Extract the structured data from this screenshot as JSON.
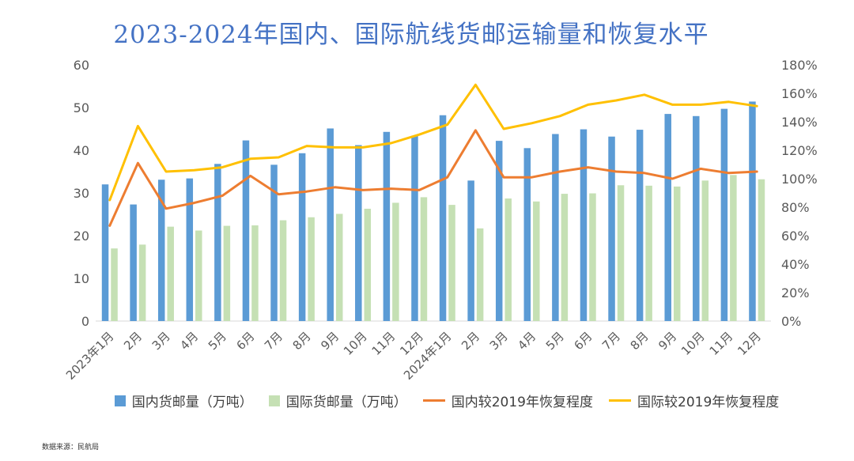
{
  "chart_data": {
    "type": "bar",
    "title": "2023-2024年国内、国际航线货邮运输量和恢复水平",
    "categories": [
      "2023年1月",
      "2月",
      "3月",
      "4月",
      "5月",
      "6月",
      "7月",
      "8月",
      "9月",
      "10月",
      "11月",
      "12月",
      "2024年1月",
      "2月",
      "3月",
      "4月",
      "5月",
      "6月",
      "7月",
      "8月",
      "9月",
      "10月",
      "11月",
      "12月"
    ],
    "y_left": {
      "min": 0,
      "max": 60,
      "ticks": [
        "0",
        "10",
        "20",
        "30",
        "40",
        "50",
        "60"
      ]
    },
    "y_right": {
      "min": 0,
      "max": 180,
      "ticks": [
        "0%",
        "20%",
        "40%",
        "60%",
        "80%",
        "100%",
        "120%",
        "140%",
        "160%",
        "180%"
      ]
    },
    "series": [
      {
        "name": "国内货邮量（万吨）",
        "kind": "bar",
        "axis": "left",
        "color": "#5b9bd5",
        "values": [
          32.0,
          27.3,
          33.1,
          33.4,
          36.8,
          42.3,
          36.6,
          39.3,
          45.1,
          41.2,
          44.3,
          43.4,
          48.2,
          32.9,
          42.2,
          40.5,
          43.8,
          44.9,
          43.2,
          44.8,
          48.5,
          48.0,
          49.7,
          51.4
        ]
      },
      {
        "name": "国际货邮量（万吨）",
        "kind": "bar",
        "axis": "left",
        "color": "#c5e0b4",
        "values": [
          17.0,
          17.9,
          22.1,
          21.2,
          22.3,
          22.4,
          23.6,
          24.3,
          25.1,
          26.3,
          27.7,
          29.0,
          27.2,
          21.7,
          28.7,
          28.0,
          29.8,
          29.9,
          31.8,
          31.7,
          31.5,
          32.9,
          34.2,
          33.2
        ]
      },
      {
        "name": "国内较2019年恢复程度",
        "kind": "line",
        "axis": "right",
        "color": "#ed7d31",
        "values": [
          67,
          111,
          79,
          83,
          88,
          102,
          89,
          91,
          94,
          92,
          93,
          92,
          101,
          134,
          101,
          101,
          105,
          108,
          105,
          104,
          100,
          107,
          104,
          105
        ]
      },
      {
        "name": "国际较2019年恢复程度",
        "kind": "line",
        "axis": "right",
        "color": "#ffc000",
        "values": [
          85,
          137,
          105,
          106,
          108,
          114,
          115,
          123,
          122,
          122,
          125,
          131,
          138,
          166,
          135,
          139,
          144,
          152,
          155,
          159,
          152,
          152,
          154,
          151
        ]
      }
    ],
    "legend_position": "bottom",
    "grid": false
  },
  "footer": {
    "source": "数据来源：民航局"
  }
}
